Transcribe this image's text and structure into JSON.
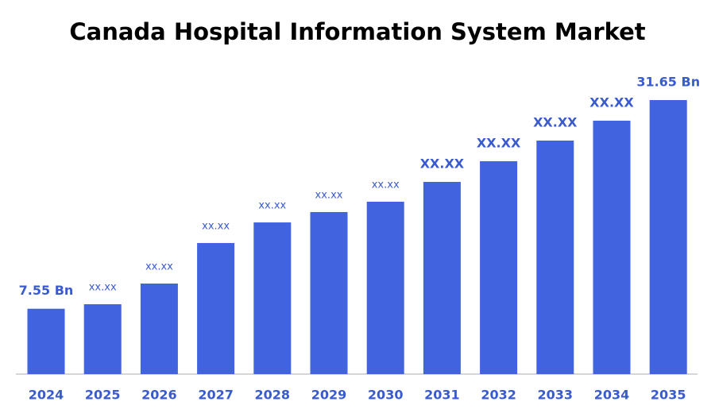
{
  "chart_data": {
    "type": "bar",
    "title": "Canada Hospital Information System Market",
    "categories": [
      "2024",
      "2025",
      "2026",
      "2027",
      "2028",
      "2029",
      "2030",
      "2031",
      "2032",
      "2033",
      "2034",
      "2035"
    ],
    "values": [
      7.55,
      8.07,
      10.46,
      15.14,
      17.52,
      18.72,
      19.91,
      22.2,
      24.59,
      26.97,
      29.27,
      31.65
    ],
    "value_labels": [
      "7.55 Bn",
      "xx.xx",
      "xx.xx",
      "xx.xx",
      "xx.xx",
      "xx.xx",
      "xx.xx",
      "XX.XX",
      "XX.XX",
      "XX.XX",
      "XX.XX",
      "31.65 Bn"
    ],
    "color": "#4163e0",
    "ylim": [
      0,
      31.65
    ]
  }
}
